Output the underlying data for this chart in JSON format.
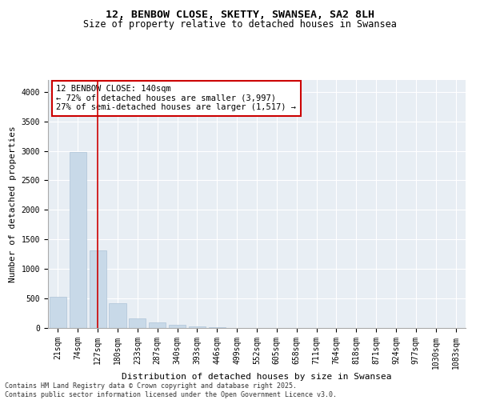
{
  "title": "12, BENBOW CLOSE, SKETTY, SWANSEA, SA2 8LH",
  "subtitle": "Size of property relative to detached houses in Swansea",
  "xlabel": "Distribution of detached houses by size in Swansea",
  "ylabel": "Number of detached properties",
  "categories": [
    "21sqm",
    "74sqm",
    "127sqm",
    "180sqm",
    "233sqm",
    "287sqm",
    "340sqm",
    "393sqm",
    "446sqm",
    "499sqm",
    "552sqm",
    "605sqm",
    "658sqm",
    "711sqm",
    "764sqm",
    "818sqm",
    "871sqm",
    "924sqm",
    "977sqm",
    "1030sqm",
    "1083sqm"
  ],
  "values": [
    530,
    2980,
    1320,
    415,
    160,
    100,
    55,
    30,
    15,
    5,
    2,
    1,
    0,
    0,
    0,
    0,
    0,
    0,
    0,
    0,
    0
  ],
  "bar_color": "#c8d9e8",
  "bar_edge_color": "#aec4d8",
  "vline_x_index": 2,
  "vline_color": "#cc0000",
  "annotation_text": "12 BENBOW CLOSE: 140sqm\n← 72% of detached houses are smaller (3,997)\n27% of semi-detached houses are larger (1,517) →",
  "annotation_box_facecolor": "#ffffff",
  "annotation_box_edgecolor": "#cc0000",
  "ylim": [
    0,
    4200
  ],
  "yticks": [
    0,
    500,
    1000,
    1500,
    2000,
    2500,
    3000,
    3500,
    4000
  ],
  "plot_bg_color": "#e8eef4",
  "footer_text": "Contains HM Land Registry data © Crown copyright and database right 2025.\nContains public sector information licensed under the Open Government Licence v3.0.",
  "title_fontsize": 9.5,
  "subtitle_fontsize": 8.5,
  "xlabel_fontsize": 8,
  "ylabel_fontsize": 8,
  "tick_fontsize": 7,
  "annotation_fontsize": 7.5,
  "footer_fontsize": 6
}
